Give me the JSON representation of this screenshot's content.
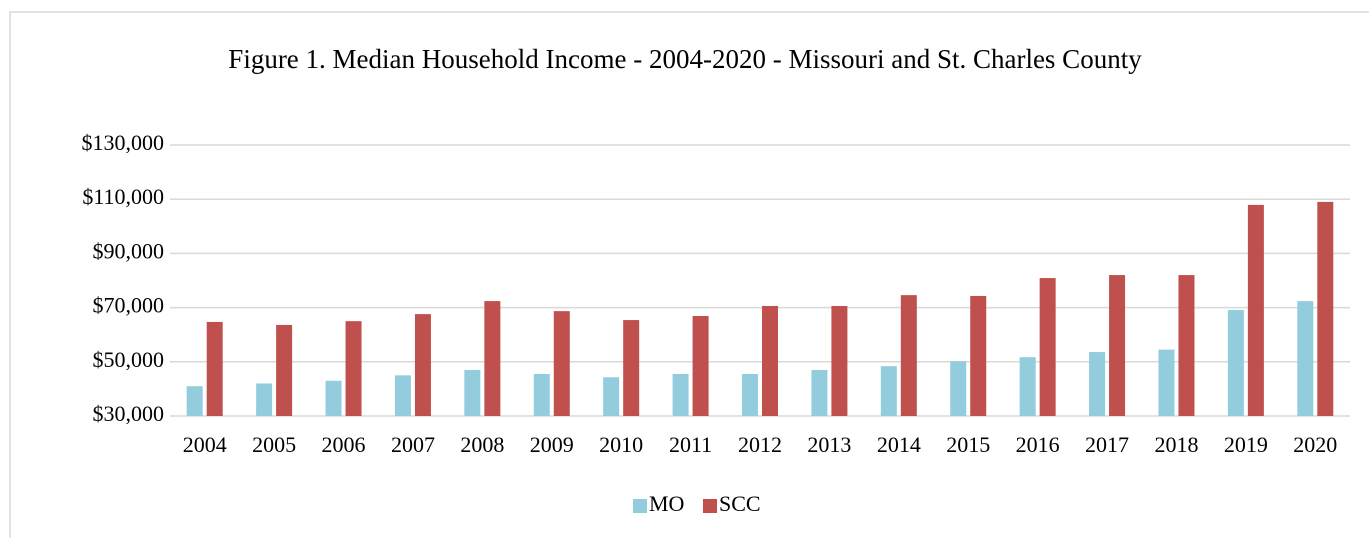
{
  "chart_data": {
    "type": "bar",
    "title": "Figure 1. Median Household Income - 2004-2020 - Missouri and St. Charles County",
    "categories": [
      "2004",
      "2005",
      "2006",
      "2007",
      "2008",
      "2009",
      "2010",
      "2011",
      "2012",
      "2013",
      "2014",
      "2015",
      "2016",
      "2017",
      "2018",
      "2019",
      "2020"
    ],
    "series": [
      {
        "name": "MO",
        "color": "#93cddd",
        "values": [
          41000,
          42000,
          43000,
          45000,
          47000,
          45500,
          44300,
          45500,
          45500,
          47000,
          48400,
          50200,
          51700,
          53600,
          54500,
          69100,
          72400
        ]
      },
      {
        "name": "SCC",
        "color": "#c0504d",
        "values": [
          64700,
          63600,
          65000,
          67600,
          72400,
          68700,
          65400,
          66900,
          70600,
          70600,
          74600,
          74300,
          80900,
          82000,
          82000,
          107900,
          109000
        ]
      }
    ],
    "ylim": [
      30000,
      130000
    ],
    "yticks": [
      {
        "value": 30000,
        "label": "$30,000"
      },
      {
        "value": 50000,
        "label": "$50,000"
      },
      {
        "value": 70000,
        "label": "$70,000"
      },
      {
        "value": 90000,
        "label": "$90,000"
      },
      {
        "value": 110000,
        "label": "$110,000"
      },
      {
        "value": 130000,
        "label": "$130,000"
      }
    ],
    "grid": true,
    "legend": "bottom"
  }
}
